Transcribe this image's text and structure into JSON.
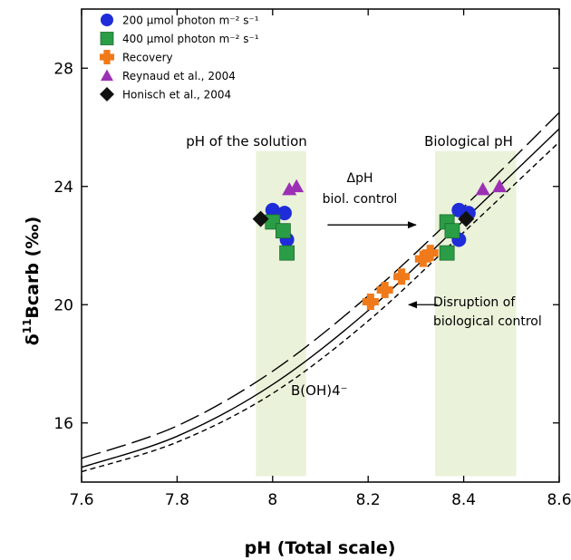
{
  "chart_data": {
    "type": "scatter",
    "xlabel": "pH (Total scale)",
    "ylabel_prefix": "δ",
    "ylabel_sup": "11",
    "ylabel_rest": "Bcarb (‰)",
    "xlim": [
      7.6,
      8.6
    ],
    "ylim": [
      14.0,
      30.0
    ],
    "x_ticks": [
      7.6,
      7.8,
      8.0,
      8.2,
      8.4,
      8.6
    ],
    "x_tick_labels": [
      "7.6",
      "7.8",
      "8",
      "8.2",
      "8.4",
      "8.6"
    ],
    "y_ticks": [
      16,
      20,
      24,
      28
    ],
    "y_tick_labels": [
      "16",
      "20",
      "24",
      "28"
    ],
    "shaded_regions": [
      {
        "label": "pH of the solution",
        "x": [
          7.965,
          8.07
        ],
        "y": [
          14.2,
          25.2
        ],
        "color": "#eaf2d9"
      },
      {
        "label": "Biological pH",
        "x": [
          8.34,
          8.51
        ],
        "y": [
          14.2,
          25.2
        ],
        "color": "#eaf2d9"
      }
    ],
    "series": [
      {
        "name": "200 μmol photon m⁻² s⁻¹",
        "marker": "circle",
        "color": "#1f2cd9",
        "points": [
          [
            8.0,
            23.2
          ],
          [
            8.025,
            23.1
          ],
          [
            8.03,
            22.2
          ],
          [
            8.39,
            23.2
          ],
          [
            8.41,
            23.1
          ],
          [
            8.39,
            22.2
          ]
        ]
      },
      {
        "name": "400 μmol photon m⁻² s⁻¹",
        "marker": "square",
        "color": "#2a9d46",
        "points": [
          [
            8.0,
            22.8
          ],
          [
            8.022,
            22.5
          ],
          [
            8.03,
            21.75
          ],
          [
            8.365,
            22.8
          ],
          [
            8.376,
            22.5
          ],
          [
            8.365,
            21.75
          ]
        ]
      },
      {
        "name": "Recovery",
        "marker": "cross",
        "color": "#f07a1a",
        "points": [
          [
            8.205,
            20.1
          ],
          [
            8.235,
            20.5
          ],
          [
            8.27,
            20.95
          ],
          [
            8.315,
            21.55
          ],
          [
            8.33,
            21.75
          ]
        ]
      },
      {
        "name": "Reynaud et al., 2004",
        "marker": "triangle",
        "color": "#9b30b5",
        "points": [
          [
            8.035,
            23.9
          ],
          [
            8.05,
            24.0
          ],
          [
            8.44,
            23.9
          ],
          [
            8.475,
            24.0
          ]
        ]
      },
      {
        "name": "Honisch et al., 2004",
        "marker": "diamond",
        "color": "#111111",
        "points": [
          [
            7.975,
            22.9
          ],
          [
            8.405,
            22.9
          ]
        ]
      }
    ],
    "curves": [
      {
        "style": "long-dash",
        "points": [
          [
            7.6,
            14.8
          ],
          [
            7.8,
            15.9
          ],
          [
            8.0,
            17.75
          ],
          [
            8.2,
            20.3
          ],
          [
            8.4,
            23.3
          ],
          [
            8.6,
            26.5
          ]
        ]
      },
      {
        "style": "solid",
        "points": [
          [
            7.6,
            14.5
          ],
          [
            7.8,
            15.55
          ],
          [
            8.0,
            17.3
          ],
          [
            8.2,
            19.8
          ],
          [
            8.4,
            22.85
          ],
          [
            8.6,
            25.95
          ]
        ]
      },
      {
        "style": "short-dash",
        "points": [
          [
            7.6,
            14.35
          ],
          [
            7.8,
            15.35
          ],
          [
            8.0,
            17.0
          ],
          [
            8.2,
            19.45
          ],
          [
            8.4,
            22.45
          ],
          [
            8.6,
            25.5
          ]
        ]
      }
    ],
    "curve_label": "B(OH)4⁻",
    "annotations": {
      "region1": "pH of the solution",
      "region2": "Biological pH",
      "delta_line1": "ΔpH",
      "delta_line2": "biol. control",
      "disrupt_line1": "Disruption of",
      "disrupt_line2": "biological control"
    },
    "arrows": [
      {
        "name": "delta-ph-arrow",
        "from": [
          8.115,
          22.7
        ],
        "to": [
          8.3,
          22.7
        ]
      },
      {
        "name": "disruption-arrow",
        "from": [
          8.345,
          20.0
        ],
        "to": [
          8.285,
          20.0
        ]
      }
    ],
    "legend_position": "top-left"
  }
}
